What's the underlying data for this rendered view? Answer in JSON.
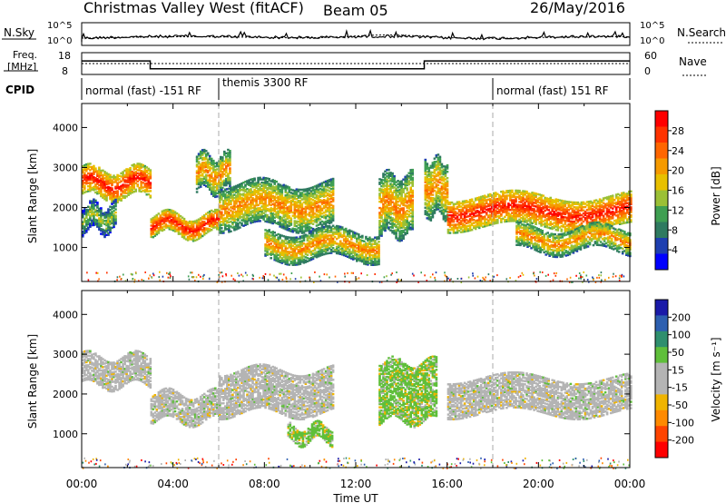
{
  "header": {
    "station": "Christmas Valley West (fitACF)",
    "beam": "Beam 05",
    "date": "26/May/2016"
  },
  "top_panels": {
    "nsky_label": "N.Sky",
    "nsky_ticks": [
      "10^5",
      "10^0"
    ],
    "nsearch_label": "N.Search",
    "nsearch_ticks": [
      "10^5",
      "10^0"
    ],
    "freq_label_1": "Freq.",
    "freq_label_2": "[MHz]",
    "freq_ticks": [
      "18",
      "8"
    ],
    "nave_label": "Nave",
    "nave_ticks": [
      "60",
      "0"
    ],
    "cpid_label": "CPID",
    "cpid_segments": [
      {
        "label": "normal (fast) -151 RF",
        "start_hour": 0,
        "end_hour": 6
      },
      {
        "label": "themis 3300 RF",
        "start_hour": 6,
        "end_hour": 18
      },
      {
        "label": "normal (fast) 151 RF",
        "start_hour": 18,
        "end_hour": 24
      }
    ],
    "freq_step": {
      "high_mhz": 14.2,
      "low_mhz": 10.6,
      "drop_hour": 3.0,
      "rise_hour": 15.0
    },
    "nave_level": 30
  },
  "colorbars": {
    "power": {
      "label": "Power [dB]",
      "ticks": [
        "28",
        "24",
        "20",
        "16",
        "12",
        "8",
        "4"
      ],
      "colors": [
        "#ff0000",
        "#ff3300",
        "#ff6600",
        "#f59a00",
        "#e8c000",
        "#9bc036",
        "#3f9f52",
        "#2f7a60",
        "#1e3fb0",
        "#0000ff"
      ]
    },
    "velocity": {
      "label": "Velocity [m s⁻¹]",
      "ticks": [
        "200",
        "100",
        "50",
        "15",
        "-15",
        "-50",
        "-100",
        "-200"
      ],
      "colors": [
        "#1a1aa8",
        "#2d5fb0",
        "#2f8f6e",
        "#5fbf3a",
        "#b4b4b4",
        "#b4b4b4",
        "#f0b400",
        "#ff8a00",
        "#ff4400",
        "#ff0000"
      ]
    }
  },
  "chart_data": [
    {
      "type": "heatmap",
      "name": "power",
      "xlabel": "",
      "ylabel": "Slant Range [km]",
      "yticks": [
        1000,
        2000,
        3000,
        4000
      ],
      "ylim": [
        150,
        4600
      ],
      "xlim": [
        0,
        24
      ],
      "bands": [
        {
          "t0": 0.0,
          "t1": 3.0,
          "r0": 2250,
          "r1": 2950,
          "level": "strong"
        },
        {
          "t0": 0.0,
          "t1": 1.5,
          "r0": 1400,
          "r1": 2050,
          "level": "weak"
        },
        {
          "t0": 3.0,
          "t1": 6.0,
          "r0": 1300,
          "r1": 1800,
          "level": "strong"
        },
        {
          "t0": 5.0,
          "t1": 6.5,
          "r0": 2400,
          "r1": 3300,
          "level": "medium"
        },
        {
          "t0": 6.0,
          "t1": 11.0,
          "r0": 1500,
          "r1": 2600,
          "level": "medium"
        },
        {
          "t0": 8.0,
          "t1": 13.0,
          "r0": 700,
          "r1": 1400,
          "level": "medium"
        },
        {
          "t0": 13.0,
          "t1": 14.5,
          "r0": 1300,
          "r1": 2800,
          "level": "medium"
        },
        {
          "t0": 15.0,
          "t1": 16.0,
          "r0": 1800,
          "r1": 3200,
          "level": "medium"
        },
        {
          "t0": 16.0,
          "t1": 24.0,
          "r0": 1500,
          "r1": 2300,
          "level": "strong"
        },
        {
          "t0": 19.0,
          "t1": 24.0,
          "r0": 900,
          "r1": 1500,
          "level": "medium"
        }
      ]
    },
    {
      "type": "heatmap",
      "name": "velocity",
      "xlabel": "Time UT",
      "ylabel": "Slant Range [km]",
      "yticks": [
        1000,
        2000,
        3000,
        4000
      ],
      "ylim": [
        150,
        4600
      ],
      "xlim": [
        0,
        24
      ],
      "xticks": [
        "00:00",
        "04:00",
        "08:00",
        "12:00",
        "16:00",
        "20:00",
        "00:00"
      ],
      "xtick_hours": [
        0,
        4,
        8,
        12,
        16,
        20,
        24
      ],
      "bands": [
        {
          "t0": 0.0,
          "t1": 3.0,
          "r0": 2200,
          "r1": 2950,
          "level": "gray"
        },
        {
          "t0": 3.0,
          "t1": 6.0,
          "r0": 1300,
          "r1": 2000,
          "level": "gray"
        },
        {
          "t0": 6.0,
          "t1": 11.0,
          "r0": 1500,
          "r1": 2600,
          "level": "gray"
        },
        {
          "t0": 9.0,
          "t1": 11.0,
          "r0": 800,
          "r1": 1200,
          "level": "green"
        },
        {
          "t0": 16.0,
          "t1": 24.0,
          "r0": 1500,
          "r1": 2400,
          "level": "gray"
        },
        {
          "t0": 13.0,
          "t1": 15.5,
          "r0": 1300,
          "r1": 2800,
          "level": "green"
        }
      ]
    }
  ]
}
